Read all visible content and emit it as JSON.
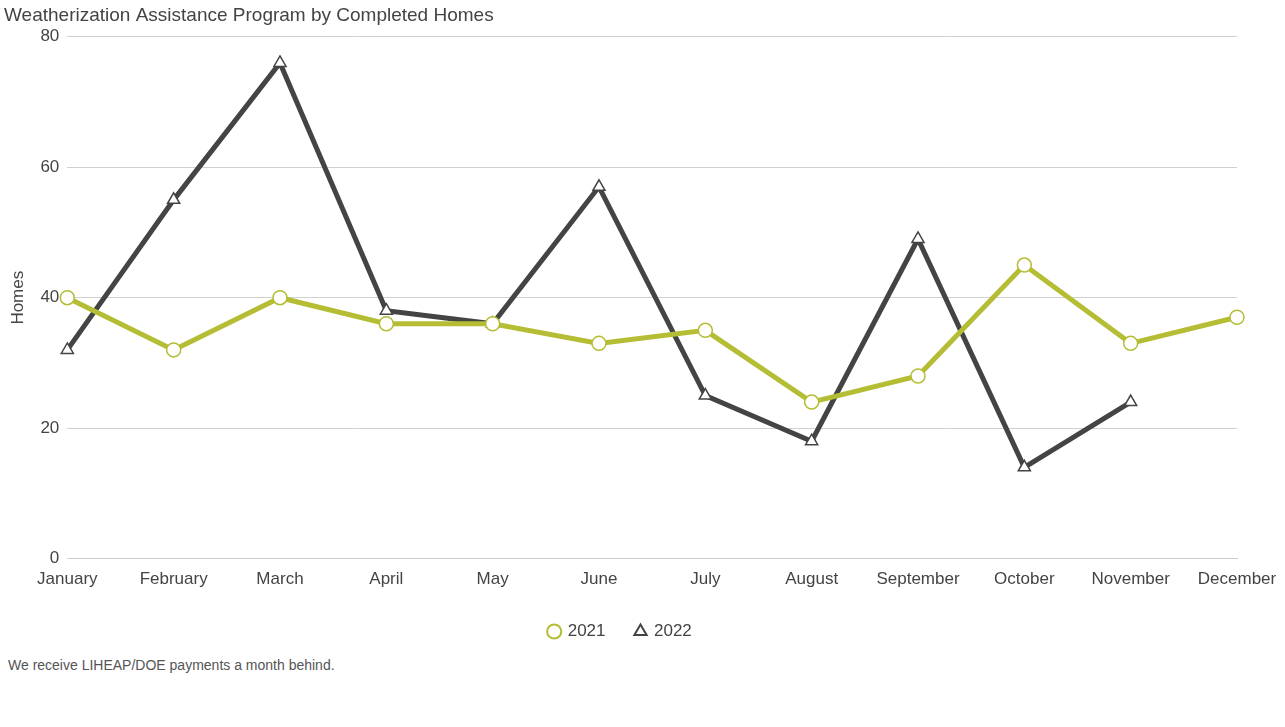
{
  "chart_data": {
    "type": "line",
    "title": "Weatherization Assistance Program by Completed Homes",
    "y_label": "Homes",
    "annotation": "We receive LIHEAP/DOE payments a month behind.",
    "categories": [
      "January",
      "February",
      "March",
      "April",
      "May",
      "June",
      "July",
      "August",
      "September",
      "October",
      "November",
      "December"
    ],
    "series": [
      {
        "name": "2021",
        "color": "#b5bd35",
        "marker": "circle",
        "line_style": "solid",
        "values": [
          40,
          32,
          40,
          36,
          36,
          33,
          35,
          24,
          28,
          45,
          33,
          37
        ]
      },
      {
        "name": "2022",
        "color": "#444444",
        "marker": "triangle",
        "line_style": "solid",
        "values": [
          32,
          55,
          76,
          38,
          36,
          57,
          25,
          18,
          49,
          14,
          24,
          null
        ]
      }
    ],
    "ylim": [
      0,
      80
    ],
    "yticks": [
      0,
      20,
      40,
      60,
      80
    ],
    "grid": true,
    "legend": "bottom"
  }
}
